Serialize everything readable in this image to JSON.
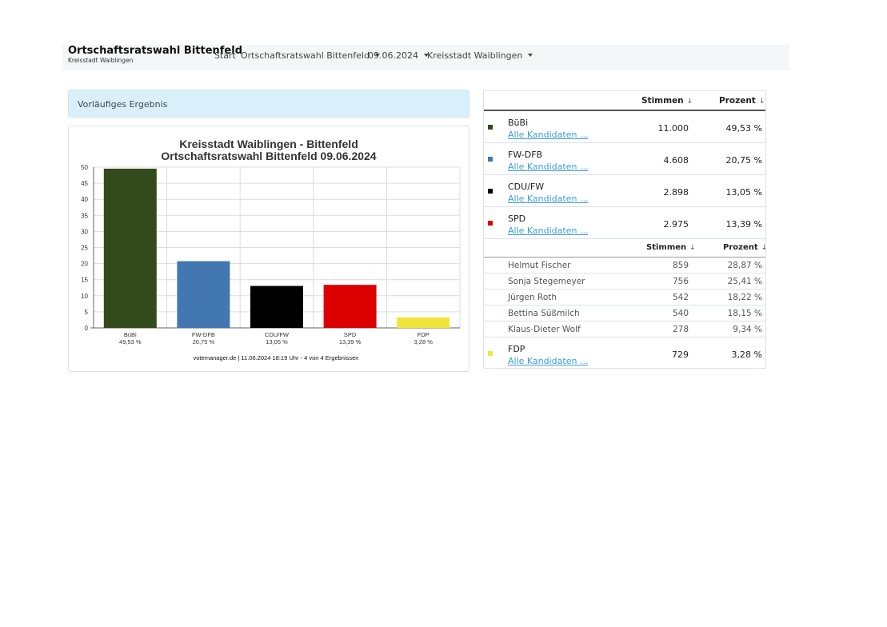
{
  "navbar": {
    "brand_title": "Ortschaftsratswahl Bittenfeld",
    "brand_subtitle": "Kreisstadt Waiblingen",
    "start": "Start",
    "election": "Ortschaftsratswahl Bittenfeld",
    "date": "09.06.2024",
    "region": "Kreisstadt Waiblingen"
  },
  "alert": "Vorläufiges Ergebnis",
  "chart_data": {
    "type": "bar",
    "title": "Kreisstadt Waiblingen - Bittenfeld",
    "subtitle": "Ortschaftsratswahl Bittenfeld 09.06.2024",
    "categories": [
      "BüBi",
      "FW-DFB",
      "CDU/FW",
      "SPD",
      "FDP"
    ],
    "category_percent_labels": [
      "49,53 %",
      "20,75 %",
      "13,05 %",
      "13,39 %",
      "3,28 %"
    ],
    "values": [
      49.53,
      20.75,
      13.05,
      13.39,
      3.28
    ],
    "colors": [
      "#334a1c",
      "#4377b1",
      "#000000",
      "#dd0000",
      "#f2e53a"
    ],
    "ylim": [
      0,
      50
    ],
    "yticks": [
      0,
      5,
      10,
      15,
      20,
      25,
      30,
      35,
      40,
      45,
      50
    ],
    "grid": true,
    "footer": "votemanager.de | 11.06.2024 18:19 Uhr - 4 von 4 Ergebnissen"
  },
  "table": {
    "header_votes": "Stimmen",
    "header_percent": "Prozent",
    "sort_icon": "↓",
    "link_label": "Alle Kandidaten ...",
    "parties": [
      {
        "name": "BüBi",
        "votes": "11.000",
        "percent": "49,53 %",
        "color": "#334a1c"
      },
      {
        "name": "FW-DFB",
        "votes": "4.608",
        "percent": "20,75 %",
        "color": "#4377b1"
      },
      {
        "name": "CDU/FW",
        "votes": "2.898",
        "percent": "13,05 %",
        "color": "#000000"
      },
      {
        "name": "SPD",
        "votes": "2.975",
        "percent": "13,39 %",
        "color": "#dd0000"
      }
    ],
    "candidates": [
      {
        "name": "Helmut Fischer",
        "votes": "859",
        "percent": "28,87 %"
      },
      {
        "name": "Sonja Stegemeyer",
        "votes": "756",
        "percent": "25,41 %"
      },
      {
        "name": "Jürgen Roth",
        "votes": "542",
        "percent": "18,22 %"
      },
      {
        "name": "Bettina Süßmilch",
        "votes": "540",
        "percent": "18,15 %"
      },
      {
        "name": "Klaus-Dieter Wolf",
        "votes": "278",
        "percent": "9,34 %"
      }
    ],
    "last_party": {
      "name": "FDP",
      "votes": "729",
      "percent": "3,28 %",
      "color": "#f2e53a"
    }
  }
}
